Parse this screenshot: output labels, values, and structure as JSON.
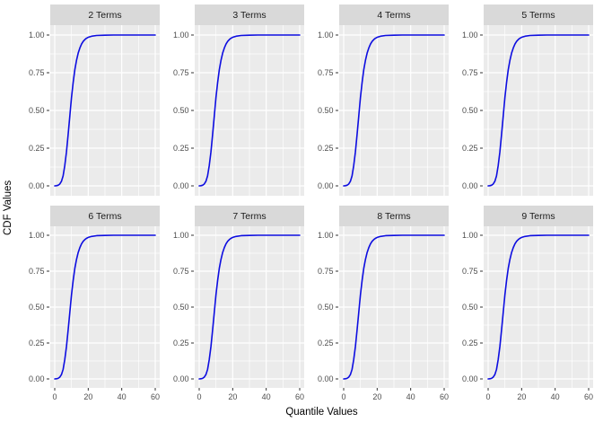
{
  "figure": {
    "y_axis_title": "CDF Values",
    "x_axis_title": "Quantile Values"
  },
  "chart_data": {
    "type": "line",
    "layout": "facet-wrap-2-rows-4-cols",
    "title": "",
    "xlabel": "Quantile Values",
    "ylabel": "CDF Values",
    "xlim": [
      0,
      60
    ],
    "ylim": [
      0,
      1
    ],
    "grid": true,
    "legend": "none",
    "line_color": "#0D0DE0",
    "panel_bg": "#EBEBEB",
    "strip_bg": "#D9D9D9",
    "x_ticks": [
      0,
      20,
      40,
      60
    ],
    "x_minor_ticks": [
      10,
      30,
      50
    ],
    "y_ticks": [
      0,
      0.25,
      0.5,
      0.75,
      1
    ],
    "y_tick_labels": [
      "0.00",
      "0.25",
      "0.50",
      "0.75",
      "1.00"
    ],
    "y_minor_ticks": [
      0.125,
      0.375,
      0.625,
      0.875
    ],
    "x": [
      0,
      1,
      2,
      3,
      4,
      5,
      6,
      7,
      8,
      9,
      10,
      11,
      12,
      13,
      14,
      15,
      16,
      17,
      18,
      19,
      20,
      22,
      25,
      30,
      35,
      40,
      50,
      60
    ],
    "series": [
      {
        "name": "2 Terms",
        "values": [
          0,
          0.001,
          0.004,
          0.012,
          0.03,
          0.066,
          0.135,
          0.225,
          0.34,
          0.462,
          0.585,
          0.685,
          0.77,
          0.832,
          0.88,
          0.914,
          0.94,
          0.958,
          0.97,
          0.979,
          0.985,
          0.992,
          0.997,
          0.999,
          1,
          1,
          1,
          1
        ]
      },
      {
        "name": "3 Terms",
        "values": [
          0,
          0.001,
          0.004,
          0.012,
          0.03,
          0.066,
          0.135,
          0.225,
          0.34,
          0.462,
          0.585,
          0.685,
          0.77,
          0.832,
          0.88,
          0.914,
          0.94,
          0.958,
          0.97,
          0.979,
          0.985,
          0.992,
          0.997,
          0.999,
          1,
          1,
          1,
          1
        ]
      },
      {
        "name": "4 Terms",
        "values": [
          0,
          0.001,
          0.004,
          0.012,
          0.03,
          0.066,
          0.135,
          0.225,
          0.34,
          0.462,
          0.585,
          0.685,
          0.77,
          0.832,
          0.88,
          0.914,
          0.94,
          0.958,
          0.97,
          0.979,
          0.985,
          0.992,
          0.997,
          0.999,
          1,
          1,
          1,
          1
        ]
      },
      {
        "name": "5 Terms",
        "values": [
          0,
          0.001,
          0.004,
          0.012,
          0.03,
          0.066,
          0.135,
          0.225,
          0.34,
          0.462,
          0.585,
          0.685,
          0.77,
          0.832,
          0.88,
          0.914,
          0.94,
          0.958,
          0.97,
          0.979,
          0.985,
          0.992,
          0.997,
          0.999,
          1,
          1,
          1,
          1
        ]
      },
      {
        "name": "6 Terms",
        "values": [
          0,
          0.001,
          0.004,
          0.012,
          0.03,
          0.066,
          0.135,
          0.225,
          0.34,
          0.462,
          0.585,
          0.685,
          0.77,
          0.832,
          0.88,
          0.914,
          0.94,
          0.958,
          0.97,
          0.979,
          0.985,
          0.992,
          0.997,
          0.999,
          1,
          1,
          1,
          1
        ]
      },
      {
        "name": "7 Terms",
        "values": [
          0,
          0.001,
          0.004,
          0.012,
          0.03,
          0.066,
          0.135,
          0.225,
          0.34,
          0.462,
          0.585,
          0.685,
          0.77,
          0.832,
          0.88,
          0.914,
          0.94,
          0.958,
          0.97,
          0.979,
          0.985,
          0.992,
          0.997,
          0.999,
          1,
          1,
          1,
          1
        ]
      },
      {
        "name": "8 Terms",
        "values": [
          0,
          0.001,
          0.004,
          0.012,
          0.03,
          0.066,
          0.135,
          0.225,
          0.34,
          0.462,
          0.585,
          0.685,
          0.77,
          0.832,
          0.88,
          0.914,
          0.94,
          0.958,
          0.97,
          0.979,
          0.985,
          0.992,
          0.997,
          0.999,
          1,
          1,
          1,
          1
        ]
      },
      {
        "name": "9 Terms",
        "values": [
          0,
          0.001,
          0.004,
          0.012,
          0.03,
          0.066,
          0.135,
          0.225,
          0.34,
          0.462,
          0.585,
          0.685,
          0.77,
          0.832,
          0.88,
          0.914,
          0.94,
          0.958,
          0.97,
          0.979,
          0.985,
          0.992,
          0.997,
          0.999,
          1,
          1,
          1,
          1
        ]
      }
    ]
  }
}
